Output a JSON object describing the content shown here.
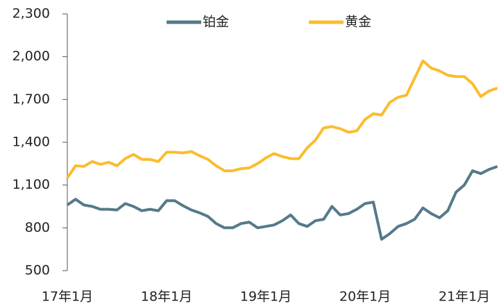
{
  "chart_data": {
    "type": "line",
    "categories": [
      "17年1月",
      null,
      null,
      null,
      null,
      null,
      null,
      null,
      null,
      null,
      null,
      null,
      "18年1月",
      null,
      null,
      null,
      null,
      null,
      null,
      null,
      null,
      null,
      null,
      null,
      "19年1月",
      null,
      null,
      null,
      null,
      null,
      null,
      null,
      null,
      null,
      null,
      null,
      "20年1月",
      null,
      null,
      null,
      null,
      null,
      null,
      null,
      null,
      null,
      null,
      null,
      "21年1月",
      null,
      null,
      null,
      null
    ],
    "series": [
      {
        "name": "铂金",
        "color": "#557a8a",
        "values": [
          960,
          1000,
          960,
          950,
          930,
          930,
          925,
          970,
          950,
          920,
          930,
          920,
          990,
          990,
          955,
          925,
          905,
          880,
          830,
          800,
          800,
          830,
          840,
          800,
          810,
          820,
          850,
          890,
          830,
          810,
          850,
          860,
          950,
          890,
          900,
          930,
          970,
          980,
          720,
          760,
          810,
          830,
          860,
          940,
          900,
          870,
          920,
          1050,
          1100,
          1200,
          1180,
          1210,
          1230
        ]
      },
      {
        "name": "黄金",
        "color": "#fbbc2d",
        "values": [
          1150,
          1235,
          1230,
          1265,
          1245,
          1260,
          1235,
          1285,
          1315,
          1280,
          1280,
          1265,
          1330,
          1330,
          1325,
          1335,
          1305,
          1280,
          1235,
          1200,
          1200,
          1215,
          1220,
          1250,
          1290,
          1320,
          1300,
          1285,
          1285,
          1360,
          1415,
          1500,
          1510,
          1495,
          1470,
          1480,
          1560,
          1600,
          1590,
          1680,
          1715,
          1730,
          1850,
          1970,
          1920,
          1900,
          1870,
          1860,
          1860,
          1810,
          1720,
          1760,
          1780
        ]
      }
    ],
    "ylim": [
      500,
      2300
    ],
    "yticks": [
      500,
      800,
      {
        "value": 1100,
        "label": "1,100"
      },
      {
        "value": 1400,
        "label": "1,400"
      },
      {
        "value": 1700,
        "label": "1,700"
      },
      {
        "value": 2000,
        "label": "2,000"
      },
      {
        "value": 2300,
        "label": "2,300"
      }
    ],
    "grid": false,
    "legend": "top"
  }
}
